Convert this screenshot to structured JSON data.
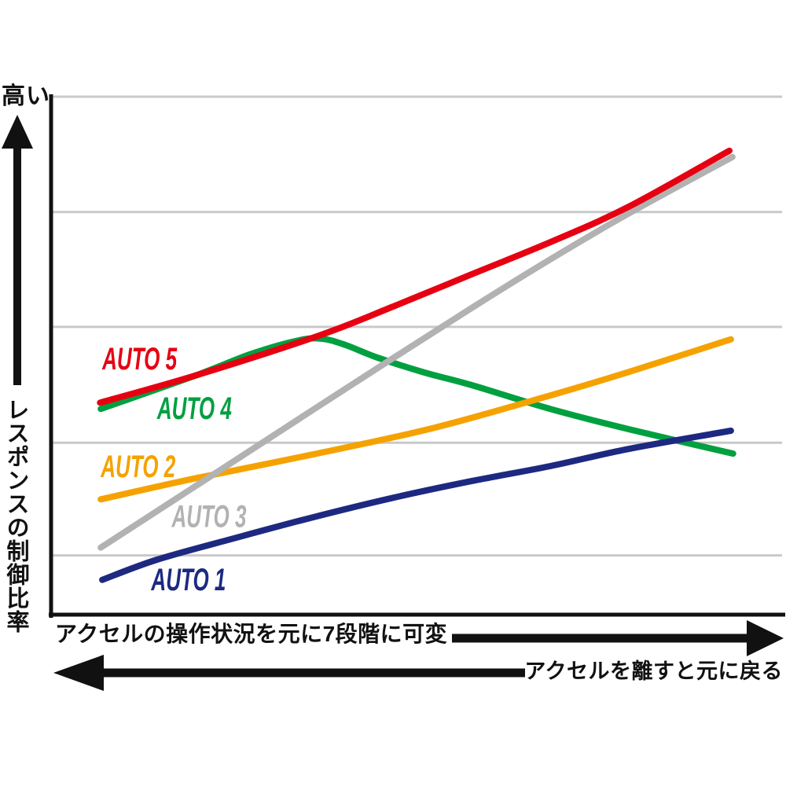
{
  "page": {
    "background": "#ffffff",
    "text_color": "#111111"
  },
  "y_axis": {
    "top_label": "高い",
    "axis_label": "レスポンスの制御比率"
  },
  "footer": {
    "line1": "アクセルの操作状況を元に7段階に可変",
    "line2": "アクセルを離すと元に戻る"
  },
  "chart_data": {
    "type": "line",
    "title": "",
    "xlabel": "",
    "ylabel": "レスポンスの制御比率",
    "x_range": [
      0,
      100
    ],
    "y_range": [
      0,
      100
    ],
    "grid": "horizontal",
    "grid_color": "#c9c9c9",
    "axis_color": "#111111",
    "gridline_values": [
      11.7,
      33.4,
      55.7,
      77.8,
      100
    ],
    "legend_position": "inline-labels",
    "series": [
      {
        "name": "AUTO 4",
        "color": "#00a040",
        "label": {
          "text": "AUTO 4",
          "x": 14.5,
          "y": 38.0
        },
        "points": [
          [
            6.8,
            39.9
          ],
          [
            19.9,
            46.4
          ],
          [
            27.4,
            50.5
          ],
          [
            33.9,
            53.1
          ],
          [
            37.1,
            53.4
          ],
          [
            40.3,
            52.2
          ],
          [
            44.6,
            49.8
          ],
          [
            51.1,
            46.9
          ],
          [
            57.5,
            44.5
          ],
          [
            68.3,
            39.9
          ],
          [
            79.0,
            36.0
          ],
          [
            93.3,
            31.3
          ]
        ]
      },
      {
        "name": "AUTO 2",
        "color": "#f5a200",
        "label": {
          "text": "AUTO 2",
          "x": 6.8,
          "y": 26.8
        },
        "points": [
          [
            6.8,
            22.5
          ],
          [
            19.9,
            26.6
          ],
          [
            36.0,
            31.2
          ],
          [
            52.2,
            36.2
          ],
          [
            68.3,
            42.5
          ],
          [
            79.0,
            47.0
          ],
          [
            93.0,
            53.3
          ]
        ]
      },
      {
        "name": "AUTO 3",
        "color": "#b2b2b2",
        "label": {
          "text": "AUTO 3",
          "x": 16.5,
          "y": 17.2
        },
        "points": [
          [
            6.8,
            13.2
          ],
          [
            25.3,
            30.1
          ],
          [
            41.4,
            44.8
          ],
          [
            57.5,
            59.3
          ],
          [
            68.3,
            68.7
          ],
          [
            79.0,
            77.5
          ],
          [
            93.2,
            88.4
          ]
        ]
      },
      {
        "name": "AUTO 1",
        "color": "#1d2981",
        "label": {
          "text": "AUTO 1",
          "x": 13.7,
          "y": 5.0
        },
        "points": [
          [
            7.0,
            7.0
          ],
          [
            14.5,
            10.9
          ],
          [
            25.3,
            15.1
          ],
          [
            36.0,
            19.1
          ],
          [
            46.8,
            22.8
          ],
          [
            57.5,
            26.0
          ],
          [
            68.3,
            28.9
          ],
          [
            79.0,
            32.2
          ],
          [
            93.0,
            35.7
          ]
        ]
      },
      {
        "name": "AUTO 5",
        "color": "#e60012",
        "label": {
          "text": "AUTO 5",
          "x": 7.0,
          "y": 47.5
        },
        "points": [
          [
            6.7,
            41.1
          ],
          [
            19.9,
            46.4
          ],
          [
            36.6,
            54.0
          ],
          [
            46.8,
            59.6
          ],
          [
            57.5,
            65.8
          ],
          [
            68.3,
            72.0
          ],
          [
            79.0,
            78.8
          ],
          [
            92.8,
            89.6
          ]
        ]
      }
    ]
  }
}
